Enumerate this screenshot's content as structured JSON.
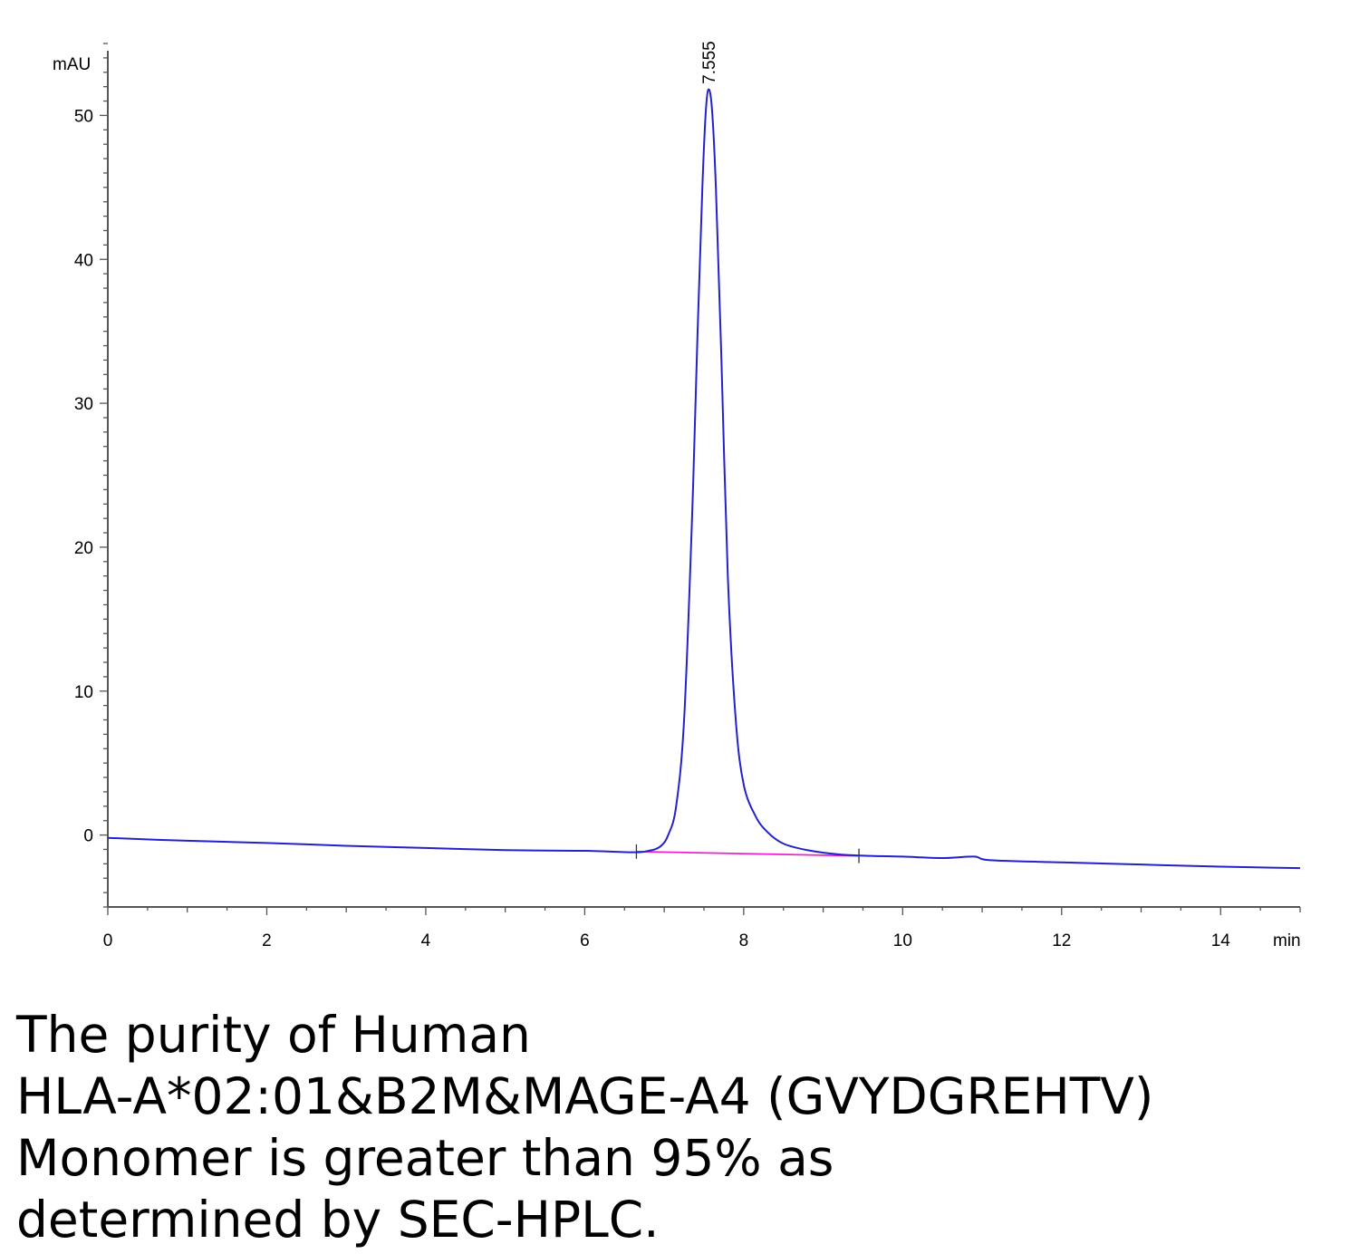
{
  "chart_data": {
    "type": "line",
    "ylabel": "mAU",
    "xlabel": "min",
    "xlim": [
      0,
      15
    ],
    "ylim": [
      -5,
      55
    ],
    "x_ticks": [
      0,
      2,
      4,
      6,
      8,
      10,
      12,
      14
    ],
    "y_ticks": [
      0,
      10,
      20,
      30,
      40,
      50
    ],
    "x_tick_labels": [
      "0",
      "2",
      "4",
      "6",
      "8",
      "10",
      "12",
      "14"
    ],
    "y_tick_labels": [
      "0",
      "10",
      "20",
      "30",
      "40",
      "50"
    ],
    "peak_annotation": {
      "label": "7.555",
      "x": 7.555,
      "y": 51.8
    },
    "series": [
      {
        "color": "#2222cc",
        "points": [
          [
            0,
            -0.2
          ],
          [
            1,
            -0.4
          ],
          [
            2,
            -0.55
          ],
          [
            3,
            -0.75
          ],
          [
            4,
            -0.9
          ],
          [
            5,
            -1.05
          ],
          [
            6,
            -1.1
          ],
          [
            6.6,
            -1.2
          ],
          [
            6.8,
            -1.1
          ],
          [
            6.95,
            -0.8
          ],
          [
            7.05,
            0.0
          ],
          [
            7.15,
            2.0
          ],
          [
            7.25,
            8.0
          ],
          [
            7.35,
            22.0
          ],
          [
            7.42,
            35.0
          ],
          [
            7.48,
            45.0
          ],
          [
            7.52,
            50.0
          ],
          [
            7.555,
            51.8
          ],
          [
            7.6,
            50.5
          ],
          [
            7.65,
            45.0
          ],
          [
            7.72,
            33.0
          ],
          [
            7.8,
            18.0
          ],
          [
            7.9,
            8.0
          ],
          [
            8.0,
            3.5
          ],
          [
            8.15,
            1.3
          ],
          [
            8.3,
            0.2
          ],
          [
            8.5,
            -0.6
          ],
          [
            8.8,
            -1.05
          ],
          [
            9.2,
            -1.35
          ],
          [
            9.6,
            -1.45
          ],
          [
            10,
            -1.5
          ],
          [
            10.5,
            -1.6
          ],
          [
            10.9,
            -1.5
          ],
          [
            11.1,
            -1.75
          ],
          [
            12,
            -1.9
          ],
          [
            13,
            -2.05
          ],
          [
            14,
            -2.2
          ],
          [
            15,
            -2.3
          ]
        ]
      },
      {
        "color": "#ee22cc",
        "points": [
          [
            6.65,
            -1.15
          ],
          [
            9.45,
            -1.45
          ]
        ]
      }
    ],
    "integration_marks": [
      6.65,
      9.45
    ]
  },
  "caption": {
    "lines": [
      "The purity of Human",
      "HLA-A*02:01&B2M&MAGE-A4 (GVYDGREHTV)",
      "Monomer is greater than 95% as",
      "determined by SEC-HPLC."
    ]
  }
}
